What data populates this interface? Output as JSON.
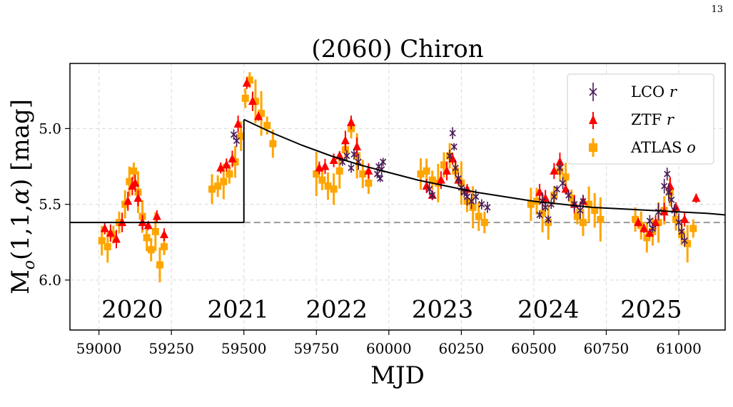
{
  "page_number": "13",
  "chart_data": {
    "type": "scatter",
    "title": "(2060) Chiron",
    "xlabel": "MJD",
    "ylabel": "M_o(1,1,α) [mag]",
    "xlim": [
      58900,
      61160
    ],
    "ylim": [
      6.33,
      4.57
    ],
    "y_inverted": true,
    "grid": true,
    "legend_position": "top-right",
    "x_ticks": [
      59000,
      59250,
      59500,
      59750,
      60000,
      60250,
      60500,
      60750,
      61000
    ],
    "y_ticks": [
      5.0,
      5.5,
      6.0
    ],
    "y_tick_labels": [
      "5.0",
      "5.5",
      "6.0"
    ],
    "year_labels": [
      {
        "text": "2020",
        "x": 59115,
        "y": 6.19
      },
      {
        "text": "2021",
        "x": 59480,
        "y": 6.19
      },
      {
        "text": "2022",
        "x": 59820,
        "y": 6.19
      },
      {
        "text": "2023",
        "x": 60185,
        "y": 6.19
      },
      {
        "text": "2024",
        "x": 60550,
        "y": 6.19
      },
      {
        "text": "2025",
        "x": 60905,
        "y": 6.19
      }
    ],
    "colors": {
      "LCO": "#4a1a55",
      "ZTF": "#ff0000",
      "ATLAS": "#ffa500",
      "model": "#000000",
      "baseline": "#999999"
    },
    "baseline": {
      "y": 5.62
    },
    "model": {
      "pre_outburst": {
        "x": [
          58900,
          59500
        ],
        "y": [
          5.62,
          5.62
        ]
      },
      "jump": {
        "x": [
          59500,
          59500
        ],
        "y": [
          5.62,
          4.94
        ]
      },
      "decay": {
        "x": [
          59500,
          59600,
          59700,
          59800,
          59900,
          60000,
          60100,
          60200,
          60300,
          60400,
          60500,
          60600,
          60700,
          60800,
          60900,
          61000,
          61100,
          61160
        ],
        "y": [
          4.94,
          5.03,
          5.11,
          5.18,
          5.24,
          5.29,
          5.34,
          5.38,
          5.42,
          5.45,
          5.48,
          5.5,
          5.52,
          5.53,
          5.54,
          5.55,
          5.56,
          5.57
        ]
      }
    },
    "series": [
      {
        "name": "LCO r",
        "marker": "x",
        "x": [
          59465,
          59475,
          59840,
          59855,
          59870,
          59880,
          59895,
          59960,
          59965,
          59970,
          59975,
          59980,
          60140,
          60150,
          60210,
          60220,
          60225,
          60230,
          60240,
          60250,
          60260,
          60270,
          60285,
          60300,
          60320,
          60340,
          60520,
          60530,
          60540,
          60550,
          60560,
          60570,
          60580,
          60590,
          60600,
          60620,
          60640,
          60660,
          60670,
          60900,
          60910,
          60930,
          60950,
          60960,
          60965,
          60975,
          60985,
          61000,
          61010,
          61020
        ],
        "y": [
          5.04,
          5.08,
          5.22,
          5.18,
          5.26,
          5.17,
          5.22,
          5.3,
          5.25,
          5.33,
          5.27,
          5.22,
          5.4,
          5.44,
          5.18,
          5.03,
          5.12,
          5.26,
          5.33,
          5.39,
          5.42,
          5.45,
          5.48,
          5.45,
          5.5,
          5.52,
          5.57,
          5.48,
          5.52,
          5.6,
          5.5,
          5.45,
          5.4,
          5.26,
          5.36,
          5.44,
          5.5,
          5.54,
          5.48,
          5.61,
          5.66,
          5.55,
          5.38,
          5.3,
          5.42,
          5.47,
          5.54,
          5.62,
          5.68,
          5.74
        ]
      },
      {
        "name": "ZTF r",
        "marker": "triangle",
        "x": [
          59020,
          59040,
          59060,
          59080,
          59100,
          59115,
          59125,
          59135,
          59150,
          59170,
          59200,
          59225,
          59420,
          59440,
          59460,
          59480,
          59510,
          59530,
          59550,
          59760,
          59780,
          59810,
          59830,
          59850,
          59870,
          59890,
          59930,
          60130,
          60150,
          60180,
          60200,
          60220,
          60240,
          60270,
          60520,
          60540,
          60570,
          60590,
          60610,
          60640,
          60670,
          60860,
          60880,
          60900,
          60920,
          60950,
          60970,
          60990,
          61020,
          61060
        ],
        "y": [
          5.66,
          5.69,
          5.73,
          5.62,
          5.48,
          5.38,
          5.36,
          5.46,
          5.62,
          5.64,
          5.58,
          5.7,
          5.26,
          5.24,
          5.2,
          4.97,
          4.7,
          4.82,
          4.92,
          5.26,
          5.25,
          5.21,
          5.18,
          5.08,
          4.96,
          5.12,
          5.28,
          5.38,
          5.44,
          5.34,
          5.28,
          5.2,
          5.34,
          5.4,
          5.42,
          5.46,
          5.28,
          5.22,
          5.4,
          5.5,
          5.48,
          5.62,
          5.66,
          5.69,
          5.62,
          5.55,
          5.38,
          5.52,
          5.6,
          5.46
        ]
      },
      {
        "name": "ATLAS o",
        "marker": "square",
        "x": [
          59010,
          59030,
          59050,
          59070,
          59090,
          59105,
          59120,
          59135,
          59150,
          59165,
          59180,
          59195,
          59210,
          59225,
          59390,
          59410,
          59430,
          59450,
          59470,
          59490,
          59505,
          59520,
          59540,
          59560,
          59580,
          59600,
          59750,
          59770,
          59790,
          59810,
          59830,
          59850,
          59870,
          59890,
          59910,
          59930,
          60110,
          60130,
          60150,
          60170,
          60190,
          60210,
          60230,
          60250,
          60270,
          60290,
          60310,
          60330,
          60490,
          60510,
          60530,
          60550,
          60570,
          60590,
          60610,
          60630,
          60650,
          60670,
          60690,
          60710,
          60730,
          60850,
          60870,
          60890,
          60910,
          60930,
          60950,
          60970,
          60990,
          61010,
          61030,
          61050
        ],
        "y": [
          5.74,
          5.78,
          5.7,
          5.62,
          5.5,
          5.35,
          5.28,
          5.42,
          5.58,
          5.72,
          5.8,
          5.68,
          5.9,
          5.78,
          5.4,
          5.38,
          5.35,
          5.3,
          5.22,
          5.05,
          4.8,
          4.68,
          4.82,
          4.9,
          4.98,
          5.1,
          5.3,
          5.34,
          5.38,
          5.4,
          5.28,
          5.14,
          5.0,
          5.18,
          5.3,
          5.36,
          5.3,
          5.28,
          5.34,
          5.36,
          5.24,
          5.18,
          5.28,
          5.36,
          5.48,
          5.52,
          5.58,
          5.62,
          5.5,
          5.48,
          5.56,
          5.62,
          5.44,
          5.28,
          5.32,
          5.46,
          5.58,
          5.62,
          5.5,
          5.54,
          5.6,
          5.6,
          5.64,
          5.72,
          5.68,
          5.62,
          5.54,
          5.42,
          5.6,
          5.7,
          5.76,
          5.66
        ]
      }
    ]
  }
}
